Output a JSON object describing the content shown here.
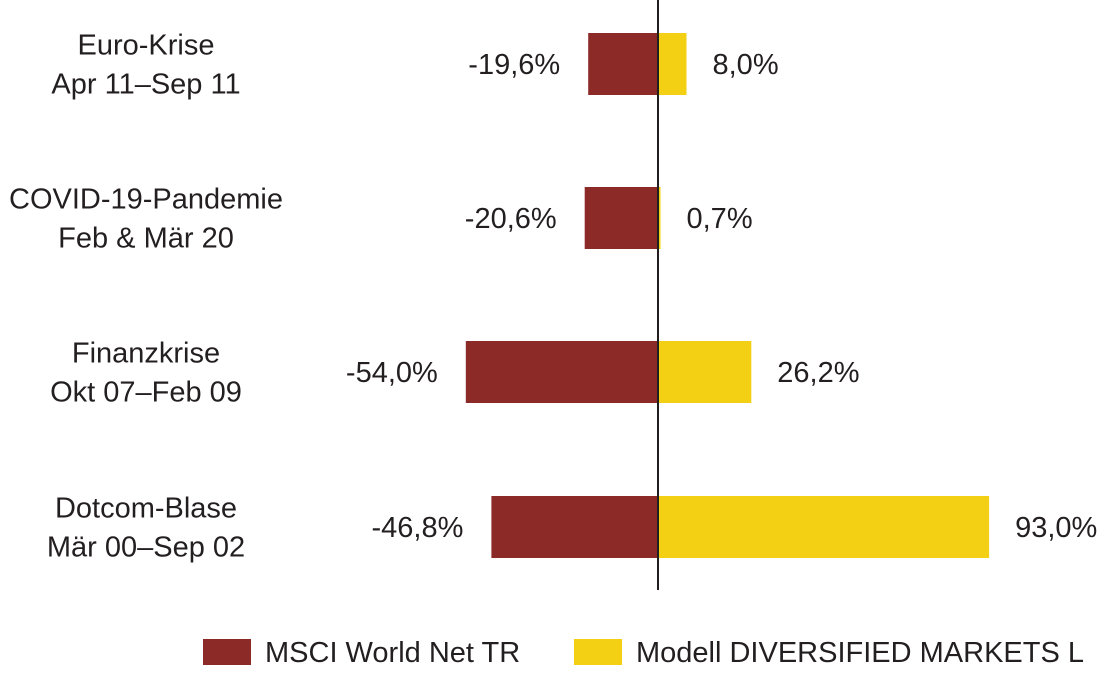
{
  "chart_data": {
    "type": "bar",
    "orientation": "horizontal",
    "categories": [
      [
        "Euro-Krise",
        "Apr 11–Sep 11"
      ],
      [
        "COVID-19-Pandemie",
        "Feb & Mär 20"
      ],
      [
        "Finanzkrise",
        "Okt 07–Feb 09"
      ],
      [
        "Dotcom-Blase",
        "Mär 00–Sep 02"
      ]
    ],
    "series": [
      {
        "name": "MSCI World Net TR",
        "color": "#8b2a26",
        "values": [
          -19.6,
          -20.6,
          -54.0,
          -46.8
        ],
        "labels": [
          "-19,6%",
          "-20,6%",
          "-54,0%",
          "-46,8%"
        ]
      },
      {
        "name": "Modell DIVERSIFIED MARKETS L",
        "color": "#f3d013",
        "values": [
          8.0,
          0.7,
          26.2,
          93.0
        ],
        "labels": [
          "8,0%",
          "0,7%",
          "26,2%",
          "93,0%"
        ]
      }
    ],
    "xlim": [
      -140,
      100
    ],
    "axis_color": "#231f20",
    "legend_position": "bottom",
    "grid": false
  }
}
